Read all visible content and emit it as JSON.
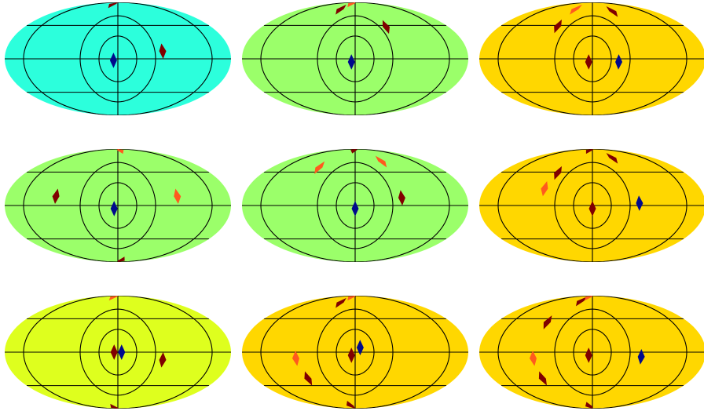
{
  "colors": {
    "cyan": "#2cffdc",
    "green": "#9bff6a",
    "yellow": "#deff1e",
    "gold": "#ffd700",
    "dark_red": "#800000",
    "orange_red": "#ff5a1e",
    "navy": "#000a8c",
    "grid": "#000000"
  },
  "maps": [
    {
      "fill": "cyan",
      "marks": [
        {
          "lon": -35,
          "lat": 84,
          "color": "dark_red"
        },
        {
          "lon": 72,
          "lat": 10,
          "color": "dark_red"
        },
        {
          "lon": -7,
          "lat": -2,
          "color": "navy"
        }
      ]
    },
    {
      "fill": "green",
      "marks": [
        {
          "lon": -50,
          "lat": 72,
          "color": "dark_red"
        },
        {
          "lon": -30,
          "lat": 86,
          "color": "orange_red"
        },
        {
          "lon": 60,
          "lat": 43,
          "color": "dark_red"
        },
        {
          "lon": -6,
          "lat": -4,
          "color": "navy"
        }
      ]
    },
    {
      "fill": "gold",
      "marks": [
        {
          "lon": -58,
          "lat": 72,
          "color": "orange_red"
        },
        {
          "lon": -68,
          "lat": 44,
          "color": "dark_red"
        },
        {
          "lon": 60,
          "lat": 68,
          "color": "dark_red"
        },
        {
          "lon": -6,
          "lat": -4,
          "color": "dark_red"
        },
        {
          "lon": 42,
          "lat": -4,
          "color": "navy"
        }
      ]
    },
    {
      "fill": "green",
      "marks": [
        {
          "lon": 20,
          "lat": 86,
          "color": "orange_red"
        },
        {
          "lon": -100,
          "lat": 12,
          "color": "dark_red"
        },
        {
          "lon": 96,
          "lat": 12,
          "color": "orange_red"
        },
        {
          "lon": 25,
          "lat": -85,
          "color": "dark_red"
        },
        {
          "lon": -6,
          "lat": -4,
          "color": "navy"
        }
      ]
    },
    {
      "fill": "green",
      "marks": [
        {
          "lon": -12,
          "lat": 87,
          "color": "dark_red"
        },
        {
          "lon": -78,
          "lat": 52,
          "color": "orange_red"
        },
        {
          "lon": 68,
          "lat": 62,
          "color": "orange_red"
        },
        {
          "lon": 75,
          "lat": 10,
          "color": "dark_red"
        },
        {
          "lon": 0,
          "lat": -4,
          "color": "navy"
        }
      ]
    },
    {
      "fill": "gold",
      "marks": [
        {
          "lon": -25,
          "lat": 86,
          "color": "dark_red"
        },
        {
          "lon": -68,
          "lat": 44,
          "color": "dark_red"
        },
        {
          "lon": -80,
          "lat": 22,
          "color": "orange_red"
        },
        {
          "lon": 60,
          "lat": 68,
          "color": "dark_red"
        },
        {
          "lon": 0,
          "lat": -4,
          "color": "dark_red"
        },
        {
          "lon": 75,
          "lat": 3,
          "color": "navy"
        }
      ]
    },
    {
      "fill": "yellow",
      "marks": [
        {
          "lon": -35,
          "lat": 86,
          "color": "orange_red"
        },
        {
          "lon": 72,
          "lat": -10,
          "color": "dark_red"
        },
        {
          "lon": -6,
          "lat": 0,
          "color": "dark_red"
        },
        {
          "lon": 6,
          "lat": 0,
          "color": "navy"
        },
        {
          "lon": -30,
          "lat": -86,
          "color": "dark_red"
        }
      ]
    },
    {
      "fill": "gold",
      "marks": [
        {
          "lon": -50,
          "lat": 72,
          "color": "dark_red"
        },
        {
          "lon": -30,
          "lat": 86,
          "color": "orange_red"
        },
        {
          "lon": -95,
          "lat": -8,
          "color": "orange_red"
        },
        {
          "lon": -85,
          "lat": -35,
          "color": "dark_red"
        },
        {
          "lon": -6,
          "lat": -4,
          "color": "dark_red"
        },
        {
          "lon": 8,
          "lat": 6,
          "color": "navy"
        },
        {
          "lon": -25,
          "lat": -80,
          "color": "dark_red"
        }
      ]
    },
    {
      "fill": "gold",
      "marks": [
        {
          "lon": -45,
          "lat": 75,
          "color": "dark_red"
        },
        {
          "lon": -30,
          "lat": 86,
          "color": "orange_red"
        },
        {
          "lon": -85,
          "lat": 40,
          "color": "dark_red"
        },
        {
          "lon": -95,
          "lat": -8,
          "color": "orange_red"
        },
        {
          "lon": -90,
          "lat": -35,
          "color": "dark_red"
        },
        {
          "lon": -6,
          "lat": -4,
          "color": "dark_red"
        },
        {
          "lon": 78,
          "lat": -6,
          "color": "navy"
        },
        {
          "lon": -20,
          "lat": -82,
          "color": "dark_red"
        }
      ]
    }
  ]
}
